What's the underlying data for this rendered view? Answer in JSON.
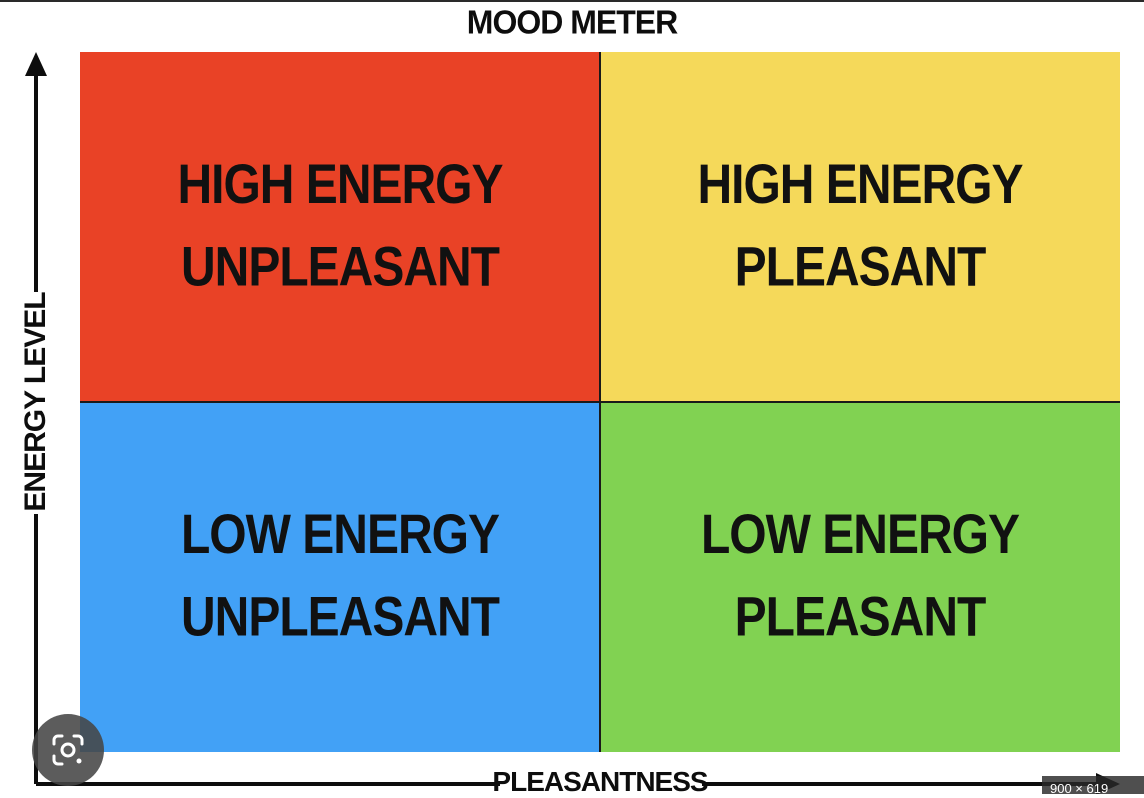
{
  "diagram": {
    "title": "MOOD METER",
    "y_axis_label": "ENERGY LEVEL",
    "x_axis_label": "PLEASANTNESS",
    "quadrants": {
      "top_left": {
        "line1": "HIGH ENERGY",
        "line2": "UNPLEASANT",
        "color": "#e94226"
      },
      "top_right": {
        "line1": "HIGH ENERGY",
        "line2": "PLEASANT",
        "color": "#f5d95a"
      },
      "bottom_left": {
        "line1": "LOW ENERGY",
        "line2": "UNPLEASANT",
        "color": "#42a1f6"
      },
      "bottom_right": {
        "line1": "LOW ENERGY",
        "line2": "PLEASANT",
        "color": "#81d252"
      }
    }
  },
  "overlay": {
    "lens_icon": "google-lens-icon",
    "size_badge": "900 × 619"
  }
}
